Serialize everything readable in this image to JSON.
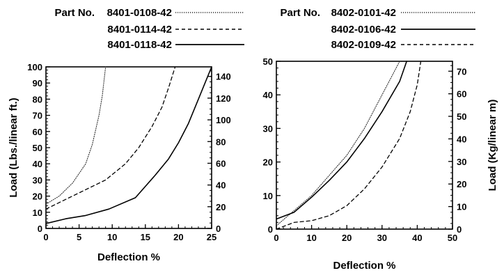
{
  "chart_data": [
    {
      "type": "line",
      "xlabel": "Deflection %",
      "ylabel": "Load (Lbs./linear ft.)",
      "xlim": [
        0,
        25
      ],
      "ylim": [
        0,
        100
      ],
      "y2lim": [
        0,
        148.8
      ],
      "xticks": [
        "0",
        "5",
        "10",
        "15",
        "20",
        "25"
      ],
      "yticks": [
        "0",
        "10",
        "20",
        "30",
        "40",
        "50",
        "60",
        "70",
        "80",
        "90",
        "100"
      ],
      "y2ticks": [
        "0",
        "20",
        "40",
        "60",
        "80",
        "100",
        "120",
        "140"
      ],
      "legend": {
        "prefix": "Part No."
      },
      "series": [
        {
          "name": "8401-0108-42",
          "style": "dotted",
          "x": [
            0,
            2,
            4,
            6,
            7,
            8,
            8.5,
            9
          ],
          "y": [
            15,
            20,
            28,
            40,
            52,
            70,
            82,
            100
          ]
        },
        {
          "name": "8401-0114-42",
          "style": "dashed",
          "x": [
            0,
            3,
            6,
            9,
            12,
            14,
            16,
            17.5,
            18.5,
            19.5
          ],
          "y": [
            12,
            18,
            24,
            30,
            40,
            50,
            63,
            75,
            87,
            100
          ]
        },
        {
          "name": "8401-0118-42",
          "style": "solid",
          "x": [
            0,
            3,
            6,
            9.5,
            13.5,
            16.5,
            18.5,
            20,
            21.5,
            23,
            24,
            25
          ],
          "y": [
            3,
            6,
            8,
            12,
            19,
            33,
            43,
            53,
            65,
            80,
            90,
            100
          ]
        }
      ]
    },
    {
      "type": "line",
      "xlabel": "Deflection %",
      "ylabel": "Load (Kg/linear m)",
      "xlim": [
        0,
        50
      ],
      "ylim": [
        0,
        50
      ],
      "y2lim": [
        0,
        74.4
      ],
      "xticks": [
        "0",
        "10",
        "20",
        "30",
        "40",
        "50"
      ],
      "yticks": [
        "0",
        "10",
        "20",
        "30",
        "40",
        "50"
      ],
      "y2ticks": [
        "0",
        "10",
        "20",
        "30",
        "40",
        "50",
        "60",
        "70"
      ],
      "legend": {
        "prefix": "Part No."
      },
      "series": [
        {
          "name": "8402-0101-42",
          "style": "dotted",
          "x": [
            0,
            10,
            20,
            25,
            30,
            33,
            35
          ],
          "y": [
            1,
            10,
            22,
            30,
            40,
            46,
            50
          ]
        },
        {
          "name": "8402-0106-42",
          "style": "solid",
          "x": [
            0,
            5,
            10,
            15,
            20,
            25,
            30,
            35,
            37
          ],
          "y": [
            3,
            5,
            9.5,
            14.5,
            20,
            27,
            35,
            44,
            50
          ]
        },
        {
          "name": "8402-0109-42",
          "style": "dashed",
          "x": [
            0,
            5,
            10,
            15,
            20,
            25,
            30,
            35,
            38,
            40,
            41
          ],
          "y": [
            0,
            2,
            2.5,
            4,
            7,
            12,
            18.5,
            27,
            35,
            43,
            50
          ]
        }
      ]
    }
  ]
}
